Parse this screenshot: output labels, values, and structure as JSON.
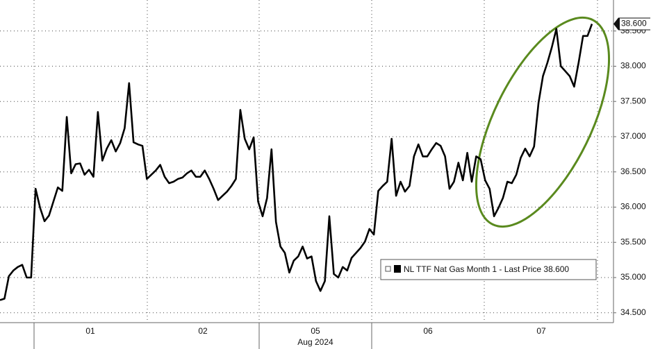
{
  "chart_data": {
    "type": "line",
    "series": [
      {
        "name": "NL TTF Nat Gas Month 1 - Last Price 38.600",
        "color": "#000000",
        "values": [
          34.68,
          34.7,
          35.02,
          35.1,
          35.15,
          35.18,
          35.0,
          35.0,
          36.26,
          35.99,
          35.8,
          35.88,
          36.08,
          36.28,
          36.23,
          37.28,
          36.48,
          36.61,
          36.62,
          36.46,
          36.53,
          36.43,
          37.35,
          36.66,
          36.83,
          36.95,
          36.79,
          36.91,
          37.12,
          37.76,
          36.92,
          36.89,
          36.87,
          36.4,
          36.46,
          36.52,
          36.6,
          36.43,
          36.34,
          36.36,
          36.4,
          36.42,
          36.48,
          36.52,
          36.43,
          36.43,
          36.52,
          36.4,
          36.26,
          36.1,
          36.16,
          36.22,
          36.3,
          36.4,
          37.38,
          36.97,
          36.82,
          36.99,
          36.08,
          35.87,
          36.13,
          36.82,
          35.79,
          35.44,
          35.35,
          35.07,
          35.24,
          35.3,
          35.44,
          35.27,
          35.3,
          34.95,
          34.81,
          34.95,
          35.87,
          35.05,
          35.0,
          35.15,
          35.1,
          35.28,
          35.35,
          35.42,
          35.51,
          35.69,
          35.61,
          36.23,
          36.3,
          36.36,
          36.97,
          36.16,
          36.36,
          36.22,
          36.3,
          36.72,
          36.89,
          36.72,
          36.72,
          36.82,
          36.91,
          36.87,
          36.72,
          36.26,
          36.36,
          36.63,
          36.38,
          36.77,
          36.36,
          36.72,
          36.68,
          36.38,
          36.26,
          35.87,
          35.99,
          36.13,
          36.36,
          36.34,
          36.46,
          36.7,
          36.83,
          36.72,
          36.86,
          37.48,
          37.86,
          38.05,
          38.27,
          38.53,
          38.0,
          37.93,
          37.86,
          37.71,
          38.05,
          38.43,
          38.43,
          38.6
        ]
      }
    ],
    "last_price_tag": "38.600",
    "xtick_labels": [
      "01",
      "02",
      "05",
      "06",
      "07"
    ],
    "xlabel": "Aug 2024",
    "ylim": [
      34.36,
      38.94
    ],
    "yticks": [
      {
        "value": 34.5,
        "label": "34.500"
      },
      {
        "value": 35,
        "label": "35.000"
      },
      {
        "value": 35.5,
        "label": "35.500"
      },
      {
        "value": 36,
        "label": "36.000"
      },
      {
        "value": 36.5,
        "label": "36.500"
      },
      {
        "value": 37,
        "label": "37.000"
      },
      {
        "value": 37.5,
        "label": "37.500"
      },
      {
        "value": 38,
        "label": "38.000"
      },
      {
        "value": 38.5,
        "label": "38.500"
      }
    ],
    "grid": true,
    "annotation_color": "#5a8a1e"
  }
}
